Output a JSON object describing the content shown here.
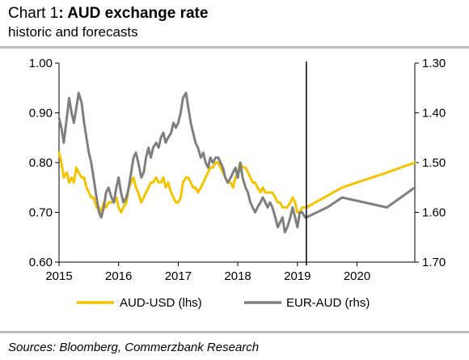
{
  "header": {
    "title_prefix": "Chart 1",
    "title_main": ": AUD exchange rate",
    "subtitle": "historic and forecasts"
  },
  "source": "Sources: Bloomberg, Commerzbank Research",
  "colors": {
    "aud_usd": "#f5c400",
    "eur_aud": "#7f7f7f",
    "rule": "#bdbdbd"
  },
  "chart_data": {
    "type": "line",
    "x_tick_labels": [
      "2015",
      "2016",
      "2017",
      "2018",
      "2019",
      "2020"
    ],
    "x_range": [
      2015.0,
      2020.97
    ],
    "y_left": {
      "ticks": [
        "1.00",
        "0.90",
        "0.80",
        "0.70",
        "0.60"
      ],
      "range": [
        0.6,
        1.0
      ]
    },
    "y_right": {
      "ticks": [
        "1.30",
        "1.40",
        "1.50",
        "1.60",
        "1.70"
      ],
      "range": [
        1.3,
        1.7
      ],
      "inverted": true
    },
    "forecast_start": 2019.15,
    "legend": {
      "position": "bottom"
    },
    "grid": false,
    "series": [
      {
        "name": "AUD-USD (lhs)",
        "axis": "left",
        "color": "#f5c400",
        "x": [
          2015.0,
          2015.04,
          2015.08,
          2015.13,
          2015.17,
          2015.21,
          2015.25,
          2015.29,
          2015.33,
          2015.38,
          2015.42,
          2015.46,
          2015.5,
          2015.54,
          2015.58,
          2015.63,
          2015.67,
          2015.71,
          2015.75,
          2015.79,
          2015.83,
          2015.88,
          2015.92,
          2015.96,
          2016.0,
          2016.04,
          2016.08,
          2016.13,
          2016.17,
          2016.21,
          2016.25,
          2016.29,
          2016.33,
          2016.38,
          2016.42,
          2016.46,
          2016.5,
          2016.54,
          2016.58,
          2016.63,
          2016.67,
          2016.71,
          2016.75,
          2016.79,
          2016.83,
          2016.88,
          2016.92,
          2016.96,
          2017.0,
          2017.04,
          2017.08,
          2017.13,
          2017.17,
          2017.21,
          2017.25,
          2017.29,
          2017.33,
          2017.38,
          2017.42,
          2017.46,
          2017.5,
          2017.54,
          2017.58,
          2017.63,
          2017.67,
          2017.71,
          2017.75,
          2017.79,
          2017.83,
          2017.88,
          2017.92,
          2017.96,
          2018.0,
          2018.04,
          2018.08,
          2018.13,
          2018.17,
          2018.21,
          2018.25,
          2018.29,
          2018.33,
          2018.38,
          2018.42,
          2018.46,
          2018.5,
          2018.54,
          2018.58,
          2018.63,
          2018.67,
          2018.71,
          2018.75,
          2018.79,
          2018.83,
          2018.88,
          2018.92,
          2018.96,
          2019.0,
          2019.04,
          2019.08,
          2019.13,
          2019.15,
          2019.75,
          2020.0,
          2020.5,
          2020.97
        ],
        "y": [
          0.82,
          0.8,
          0.77,
          0.78,
          0.76,
          0.77,
          0.76,
          0.79,
          0.78,
          0.77,
          0.77,
          0.75,
          0.74,
          0.73,
          0.73,
          0.71,
          0.71,
          0.7,
          0.72,
          0.71,
          0.72,
          0.72,
          0.72,
          0.73,
          0.71,
          0.7,
          0.71,
          0.72,
          0.75,
          0.76,
          0.77,
          0.75,
          0.74,
          0.72,
          0.73,
          0.74,
          0.75,
          0.76,
          0.76,
          0.77,
          0.76,
          0.76,
          0.77,
          0.75,
          0.76,
          0.74,
          0.73,
          0.72,
          0.72,
          0.73,
          0.76,
          0.77,
          0.77,
          0.76,
          0.75,
          0.75,
          0.74,
          0.75,
          0.76,
          0.77,
          0.78,
          0.79,
          0.79,
          0.8,
          0.8,
          0.79,
          0.78,
          0.77,
          0.76,
          0.76,
          0.75,
          0.77,
          0.78,
          0.8,
          0.79,
          0.79,
          0.78,
          0.77,
          0.76,
          0.76,
          0.75,
          0.74,
          0.75,
          0.74,
          0.74,
          0.74,
          0.74,
          0.73,
          0.72,
          0.72,
          0.71,
          0.71,
          0.71,
          0.72,
          0.73,
          0.72,
          0.7,
          0.7,
          0.71,
          0.71,
          0.71,
          0.75,
          0.76,
          0.78,
          0.8
        ]
      },
      {
        "name": "EUR-AUD (rhs)",
        "axis": "right",
        "color": "#7f7f7f",
        "x": [
          2015.0,
          2015.04,
          2015.08,
          2015.13,
          2015.17,
          2015.21,
          2015.25,
          2015.29,
          2015.33,
          2015.38,
          2015.42,
          2015.46,
          2015.5,
          2015.54,
          2015.58,
          2015.63,
          2015.67,
          2015.71,
          2015.75,
          2015.79,
          2015.83,
          2015.88,
          2015.92,
          2015.96,
          2016.0,
          2016.04,
          2016.08,
          2016.13,
          2016.17,
          2016.21,
          2016.25,
          2016.29,
          2016.33,
          2016.38,
          2016.42,
          2016.46,
          2016.5,
          2016.54,
          2016.58,
          2016.63,
          2016.67,
          2016.71,
          2016.75,
          2016.79,
          2016.83,
          2016.88,
          2016.92,
          2016.96,
          2017.0,
          2017.04,
          2017.08,
          2017.13,
          2017.17,
          2017.21,
          2017.25,
          2017.29,
          2017.33,
          2017.38,
          2017.42,
          2017.46,
          2017.5,
          2017.54,
          2017.58,
          2017.63,
          2017.67,
          2017.71,
          2017.75,
          2017.79,
          2017.83,
          2017.88,
          2017.92,
          2017.96,
          2018.0,
          2018.04,
          2018.08,
          2018.13,
          2018.17,
          2018.21,
          2018.25,
          2018.29,
          2018.33,
          2018.38,
          2018.42,
          2018.46,
          2018.5,
          2018.54,
          2018.58,
          2018.63,
          2018.67,
          2018.71,
          2018.75,
          2018.79,
          2018.83,
          2018.88,
          2018.92,
          2018.96,
          2019.0,
          2019.04,
          2019.08,
          2019.13,
          2019.15,
          2019.5,
          2019.75,
          2020.5,
          2020.97
        ],
        "y": [
          1.41,
          1.43,
          1.46,
          1.41,
          1.37,
          1.4,
          1.42,
          1.39,
          1.36,
          1.38,
          1.42,
          1.45,
          1.48,
          1.5,
          1.53,
          1.57,
          1.6,
          1.61,
          1.59,
          1.56,
          1.55,
          1.57,
          1.58,
          1.55,
          1.53,
          1.56,
          1.58,
          1.57,
          1.55,
          1.52,
          1.49,
          1.48,
          1.5,
          1.53,
          1.52,
          1.49,
          1.47,
          1.49,
          1.47,
          1.46,
          1.47,
          1.45,
          1.44,
          1.46,
          1.45,
          1.44,
          1.42,
          1.43,
          1.42,
          1.4,
          1.37,
          1.36,
          1.39,
          1.42,
          1.44,
          1.46,
          1.47,
          1.49,
          1.48,
          1.5,
          1.51,
          1.49,
          1.5,
          1.49,
          1.49,
          1.5,
          1.51,
          1.53,
          1.54,
          1.53,
          1.52,
          1.51,
          1.53,
          1.5,
          1.53,
          1.55,
          1.56,
          1.58,
          1.59,
          1.6,
          1.59,
          1.58,
          1.57,
          1.58,
          1.59,
          1.58,
          1.59,
          1.61,
          1.63,
          1.62,
          1.61,
          1.64,
          1.63,
          1.61,
          1.59,
          1.61,
          1.63,
          1.6,
          1.6,
          1.61,
          1.61,
          1.59,
          1.57,
          1.59,
          1.55
        ]
      }
    ]
  }
}
